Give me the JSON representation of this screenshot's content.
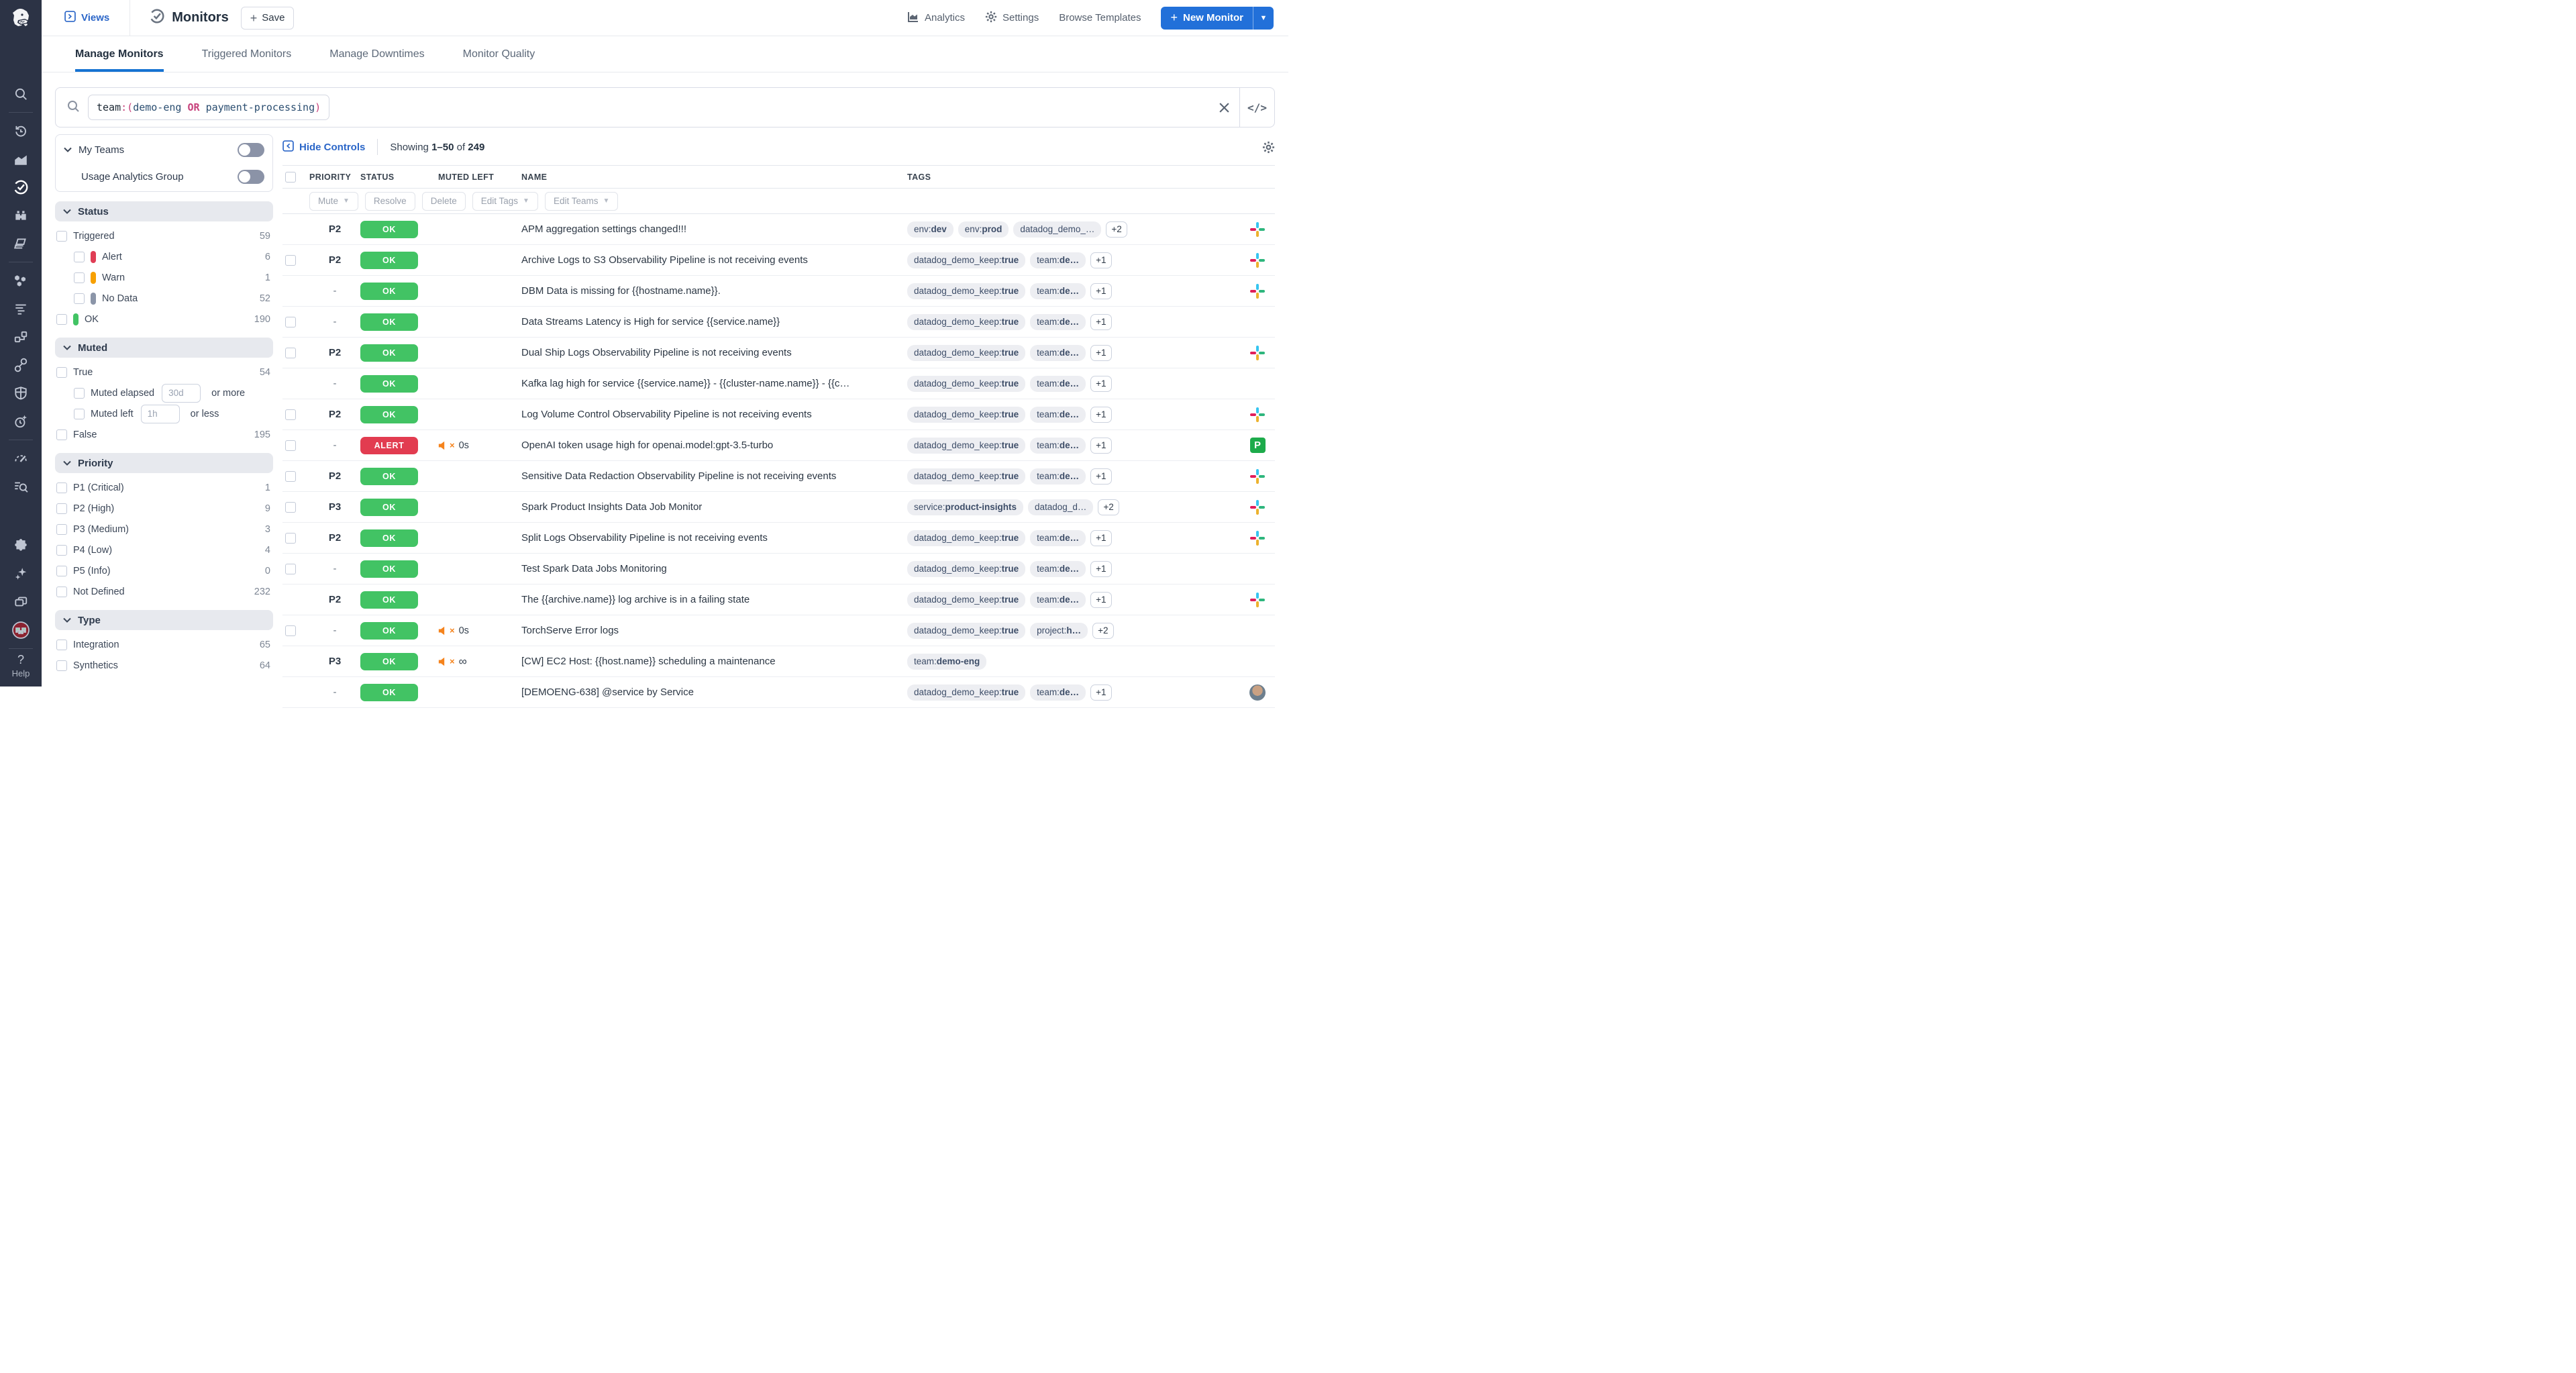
{
  "colors": {
    "accent_blue": "#2270d9",
    "link_blue": "#2b66c8",
    "tab_underline": "#1673d2",
    "ok_green": "#42c364",
    "alert_red": "#e23c50",
    "muted_orange": "#f5831c",
    "rail_bg": "#2c3345"
  },
  "rail": {
    "icons": [
      "datadog-logo",
      "search",
      "history",
      "metrics",
      "monitors",
      "watchdog",
      "dashboards",
      "infrastructure",
      "logs",
      "apm",
      "ci-pipelines",
      "security",
      "llm-observability",
      "slo",
      "audit-trail",
      "integrations",
      "bits-ai",
      "sandbox",
      "user-avatar"
    ],
    "help_label": "Help"
  },
  "topbar": {
    "views_label": "Views",
    "title": "Monitors",
    "save_label": "Save",
    "analytics_label": "Analytics",
    "settings_label": "Settings",
    "browse_templates_label": "Browse Templates",
    "new_monitor_label": "New Monitor"
  },
  "tabs": [
    {
      "label": "Manage Monitors",
      "active": true
    },
    {
      "label": "Triggered Monitors",
      "active": false
    },
    {
      "label": "Manage Downtimes",
      "active": false
    },
    {
      "label": "Monitor Quality",
      "active": false
    }
  ],
  "search": {
    "query_plain": "team:(demo-eng OR payment-processing)",
    "segments": [
      {
        "t": "team",
        "c": "q-field"
      },
      {
        "t": ":(",
        "c": "q-op"
      },
      {
        "t": "demo-eng",
        "c": "q-val"
      },
      {
        "t": " ",
        "c": "q-field"
      },
      {
        "t": "OR",
        "c": "q-opb"
      },
      {
        "t": " ",
        "c": "q-field"
      },
      {
        "t": "payment-processing",
        "c": "q-val"
      },
      {
        "t": ")",
        "c": "q-op"
      }
    ]
  },
  "controls": {
    "hide_controls_label": "Hide Controls",
    "showing_prefix": "Showing",
    "range": "1–50",
    "of_word": "of",
    "total": "249"
  },
  "filters": {
    "my_teams": {
      "label": "My Teams",
      "toggle_on": false,
      "sub_label": "Usage Analytics Group",
      "sub_toggle_on": false
    },
    "sections": [
      {
        "title": "Status",
        "items": [
          {
            "label": "Triggered",
            "count": "59",
            "indent": 0
          },
          {
            "label": "Alert",
            "count": "6",
            "indent": 1,
            "chip": "#e03e55"
          },
          {
            "label": "Warn",
            "count": "1",
            "indent": 1,
            "chip": "#f7a000"
          },
          {
            "label": "No Data",
            "count": "52",
            "indent": 1,
            "chip": "#8b95a8"
          },
          {
            "label": "OK",
            "count": "190",
            "indent": 0,
            "chip": "#42c364"
          }
        ]
      },
      {
        "title": "Muted",
        "items": [
          {
            "label": "True",
            "count": "54",
            "indent": 0
          },
          {
            "label": "Muted elapsed",
            "indent": 1,
            "input": "30d",
            "suffix": "or more"
          },
          {
            "label": "Muted left",
            "indent": 1,
            "input": "1h",
            "suffix": "or less"
          },
          {
            "label": "False",
            "count": "195",
            "indent": 0
          }
        ]
      },
      {
        "title": "Priority",
        "items": [
          {
            "label": "P1 (Critical)",
            "count": "1",
            "indent": 0
          },
          {
            "label": "P2 (High)",
            "count": "9",
            "indent": 0
          },
          {
            "label": "P3 (Medium)",
            "count": "3",
            "indent": 0
          },
          {
            "label": "P4 (Low)",
            "count": "4",
            "indent": 0
          },
          {
            "label": "P5 (Info)",
            "count": "0",
            "indent": 0
          },
          {
            "label": "Not Defined",
            "count": "232",
            "indent": 0
          }
        ]
      },
      {
        "title": "Type",
        "items": [
          {
            "label": "Integration",
            "count": "65",
            "indent": 0
          },
          {
            "label": "Synthetics",
            "count": "64",
            "indent": 0
          }
        ]
      }
    ]
  },
  "table": {
    "columns": [
      "PRIORITY",
      "STATUS",
      "MUTED LEFT",
      "NAME",
      "TAGS"
    ],
    "actions": [
      {
        "label": "Mute",
        "caret": true
      },
      {
        "label": "Resolve",
        "caret": false
      },
      {
        "label": "Delete",
        "caret": false
      },
      {
        "label": "Edit Tags",
        "caret": true
      },
      {
        "label": "Edit Teams",
        "caret": true
      }
    ],
    "rows": [
      {
        "cb": false,
        "pr": "P2",
        "st": "OK",
        "mut": null,
        "name": "APM aggregation settings changed!!!",
        "tags": [
          {
            "k": "env:",
            "v": "dev"
          },
          {
            "k": "env:",
            "v": "prod"
          },
          {
            "k": "datadog_demo_…",
            "v": ""
          }
        ],
        "more": "+2",
        "icon": "slack"
      },
      {
        "cb": true,
        "pr": "P2",
        "st": "OK",
        "mut": null,
        "name": "Archive Logs to S3 Observability Pipeline is not receiving events",
        "tags": [
          {
            "k": "datadog_demo_keep:",
            "v": "true"
          },
          {
            "k": "team:",
            "v": "de…"
          }
        ],
        "more": "+1",
        "icon": "slack"
      },
      {
        "cb": false,
        "pr": "-",
        "st": "OK",
        "mut": null,
        "name": "DBM Data is missing for {{hostname.name}}.",
        "tags": [
          {
            "k": "datadog_demo_keep:",
            "v": "true"
          },
          {
            "k": "team:",
            "v": "de…"
          }
        ],
        "more": "+1",
        "icon": "slack"
      },
      {
        "cb": true,
        "pr": "-",
        "st": "OK",
        "mut": null,
        "name": "Data Streams Latency is High for service {{service.name}}",
        "tags": [
          {
            "k": "datadog_demo_keep:",
            "v": "true"
          },
          {
            "k": "team:",
            "v": "de…"
          }
        ],
        "more": "+1",
        "icon": null
      },
      {
        "cb": true,
        "pr": "P2",
        "st": "OK",
        "mut": null,
        "name": "Dual Ship Logs Observability Pipeline is not receiving events",
        "tags": [
          {
            "k": "datadog_demo_keep:",
            "v": "true"
          },
          {
            "k": "team:",
            "v": "de…"
          }
        ],
        "more": "+1",
        "icon": "slack"
      },
      {
        "cb": false,
        "pr": "-",
        "st": "OK",
        "mut": null,
        "name": "Kafka lag high for service {{service.name}} - {{cluster-name.name}} - {{c…",
        "tags": [
          {
            "k": "datadog_demo_keep:",
            "v": "true"
          },
          {
            "k": "team:",
            "v": "de…"
          }
        ],
        "more": "+1",
        "icon": null
      },
      {
        "cb": true,
        "pr": "P2",
        "st": "OK",
        "mut": null,
        "name": "Log Volume Control Observability Pipeline is not receiving events",
        "tags": [
          {
            "k": "datadog_demo_keep:",
            "v": "true"
          },
          {
            "k": "team:",
            "v": "de…"
          }
        ],
        "more": "+1",
        "icon": "slack"
      },
      {
        "cb": true,
        "pr": "-",
        "st": "ALERT",
        "mut": "0s",
        "name": "OpenAI token usage high for openai.model:gpt-3.5-turbo",
        "tags": [
          {
            "k": "datadog_demo_keep:",
            "v": "true"
          },
          {
            "k": "team:",
            "v": "de…"
          }
        ],
        "more": "+1",
        "icon": "pagerduty"
      },
      {
        "cb": true,
        "pr": "P2",
        "st": "OK",
        "mut": null,
        "name": "Sensitive Data Redaction Observability Pipeline is not receiving events",
        "tags": [
          {
            "k": "datadog_demo_keep:",
            "v": "true"
          },
          {
            "k": "team:",
            "v": "de…"
          }
        ],
        "more": "+1",
        "icon": "slack"
      },
      {
        "cb": true,
        "pr": "P3",
        "st": "OK",
        "mut": null,
        "name": "Spark Product Insights Data Job Monitor",
        "tags": [
          {
            "k": "service:",
            "v": "product-insights"
          },
          {
            "k": "datadog_d…",
            "v": ""
          }
        ],
        "more": "+2",
        "icon": "slack"
      },
      {
        "cb": true,
        "pr": "P2",
        "st": "OK",
        "mut": null,
        "name": "Split Logs Observability Pipeline is not receiving events",
        "tags": [
          {
            "k": "datadog_demo_keep:",
            "v": "true"
          },
          {
            "k": "team:",
            "v": "de…"
          }
        ],
        "more": "+1",
        "icon": "slack"
      },
      {
        "cb": true,
        "pr": "-",
        "st": "OK",
        "mut": null,
        "name": "Test Spark Data Jobs Monitoring",
        "tags": [
          {
            "k": "datadog_demo_keep:",
            "v": "true"
          },
          {
            "k": "team:",
            "v": "de…"
          }
        ],
        "more": "+1",
        "icon": null
      },
      {
        "cb": false,
        "pr": "P2",
        "st": "OK",
        "mut": null,
        "name": "The {{archive.name}} log archive is in a failing state",
        "tags": [
          {
            "k": "datadog_demo_keep:",
            "v": "true"
          },
          {
            "k": "team:",
            "v": "de…"
          }
        ],
        "more": "+1",
        "icon": "slack"
      },
      {
        "cb": true,
        "pr": "-",
        "st": "OK",
        "mut": "0s",
        "name": "TorchServe Error logs",
        "tags": [
          {
            "k": "datadog_demo_keep:",
            "v": "true"
          },
          {
            "k": "project:",
            "v": "h…"
          }
        ],
        "more": "+2",
        "icon": null
      },
      {
        "cb": false,
        "pr": "P3",
        "st": "OK",
        "mut": "∞",
        "name": "[CW] EC2 Host: {{host.name}} scheduling a maintenance",
        "tags": [
          {
            "k": "team:",
            "v": "demo-eng"
          }
        ],
        "more": null,
        "icon": null
      },
      {
        "cb": false,
        "pr": "-",
        "st": "OK",
        "mut": null,
        "name": "[DEMOENG-638] @service by Service",
        "tags": [
          {
            "k": "datadog_demo_keep:",
            "v": "true"
          },
          {
            "k": "team:",
            "v": "de…"
          }
        ],
        "more": "+1",
        "icon": "avatar"
      }
    ]
  }
}
